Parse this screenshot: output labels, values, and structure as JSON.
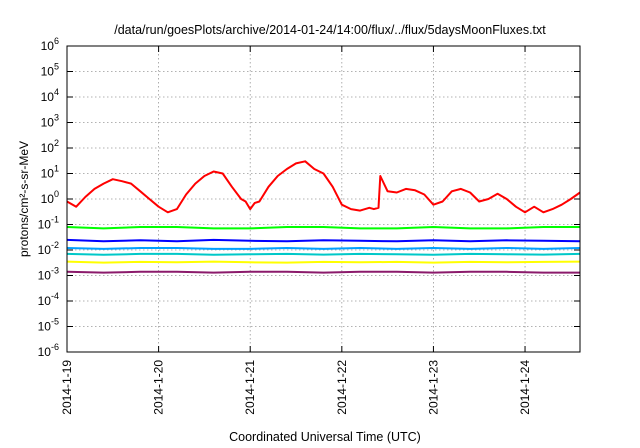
{
  "chart_data": {
    "type": "line",
    "title": "/data/run/goesPlots/archive/2014-01-24/14:00/flux/../flux/5daysMoonFluxes.txt",
    "xlabel": "Coordinated Universal Time (UTC)",
    "ylabel": "protons/cm²-s-sr-MeV",
    "yscale": "log",
    "ylim": [
      1e-06,
      1000000.0
    ],
    "xlim": [
      0,
      5.6
    ],
    "grid": true,
    "yticks": [
      {
        "exp": "-6",
        "value": 1e-06
      },
      {
        "exp": "-5",
        "value": 1e-05
      },
      {
        "exp": "-4",
        "value": 0.0001
      },
      {
        "exp": "-3",
        "value": 0.001
      },
      {
        "exp": "-2",
        "value": 0.01
      },
      {
        "exp": "-1",
        "value": 0.1
      },
      {
        "exp": "0",
        "value": 1
      },
      {
        "exp": "1",
        "value": 10
      },
      {
        "exp": "2",
        "value": 100
      },
      {
        "exp": "3",
        "value": 1000
      },
      {
        "exp": "4",
        "value": 10000
      },
      {
        "exp": "5",
        "value": 100000
      },
      {
        "exp": "6",
        "value": 1000000
      }
    ],
    "xticks": [
      {
        "label": "2014-1-19",
        "value": 0
      },
      {
        "label": "2014-1-20",
        "value": 1
      },
      {
        "label": "2014-1-21",
        "value": 2
      },
      {
        "label": "2014-1-22",
        "value": 3
      },
      {
        "label": "2014-1-23",
        "value": 4
      },
      {
        "label": "2014-1-24",
        "value": 5
      }
    ],
    "series": [
      {
        "color": "#ff0000",
        "x": [
          0,
          0.1,
          0.2,
          0.3,
          0.4,
          0.5,
          0.6,
          0.7,
          0.8,
          0.9,
          1.0,
          1.1,
          1.2,
          1.3,
          1.4,
          1.5,
          1.6,
          1.7,
          1.8,
          1.9,
          1.95,
          2.0,
          2.05,
          2.1,
          2.2,
          2.3,
          2.4,
          2.5,
          2.6,
          2.7,
          2.8,
          2.9,
          3.0,
          3.1,
          3.2,
          3.3,
          3.35,
          3.4,
          3.42,
          3.5,
          3.6,
          3.7,
          3.8,
          3.9,
          4.0,
          4.1,
          4.2,
          4.3,
          4.4,
          4.5,
          4.6,
          4.7,
          4.8,
          4.9,
          5.0,
          5.1,
          5.2,
          5.3,
          5.4,
          5.5,
          5.6
        ],
        "y": [
          0.8,
          0.5,
          1.2,
          2.5,
          4,
          6,
          5,
          4,
          2,
          1,
          0.5,
          0.3,
          0.4,
          1.5,
          4,
          8,
          12,
          10,
          3,
          1,
          0.8,
          0.4,
          0.7,
          0.8,
          3,
          8,
          15,
          25,
          30,
          15,
          10,
          3,
          0.6,
          0.4,
          0.35,
          0.45,
          0.4,
          0.45,
          8,
          2,
          1.8,
          2.5,
          2.2,
          1.5,
          0.6,
          0.8,
          2,
          2.5,
          1.8,
          0.8,
          1,
          1.6,
          1,
          0.5,
          0.3,
          0.5,
          0.3,
          0.4,
          0.6,
          1,
          1.8
        ]
      },
      {
        "color": "#00ff00",
        "x": [
          0,
          0.4,
          0.8,
          1.2,
          1.6,
          2.0,
          2.4,
          2.8,
          3.2,
          3.6,
          4.0,
          4.4,
          4.8,
          5.2,
          5.6
        ],
        "y": [
          0.08,
          0.07,
          0.08,
          0.08,
          0.07,
          0.07,
          0.08,
          0.08,
          0.07,
          0.07,
          0.08,
          0.07,
          0.07,
          0.08,
          0.08
        ]
      },
      {
        "color": "#0000ff",
        "x": [
          0,
          0.4,
          0.8,
          1.2,
          1.6,
          2.0,
          2.4,
          2.8,
          3.2,
          3.6,
          4.0,
          4.4,
          4.8,
          5.2,
          5.6
        ],
        "y": [
          0.025,
          0.022,
          0.024,
          0.022,
          0.025,
          0.023,
          0.022,
          0.024,
          0.023,
          0.022,
          0.024,
          0.022,
          0.024,
          0.023,
          0.022
        ]
      },
      {
        "color": "#00a0ff",
        "x": [
          0,
          0.4,
          0.8,
          1.2,
          1.6,
          2.0,
          2.4,
          2.8,
          3.2,
          3.6,
          4.0,
          4.4,
          4.8,
          5.2,
          5.6
        ],
        "y": [
          0.012,
          0.011,
          0.012,
          0.012,
          0.011,
          0.011,
          0.012,
          0.011,
          0.012,
          0.011,
          0.012,
          0.011,
          0.012,
          0.011,
          0.012
        ]
      },
      {
        "color": "#00c8c8",
        "x": [
          0,
          0.4,
          0.8,
          1.2,
          1.6,
          2.0,
          2.4,
          2.8,
          3.2,
          3.6,
          4.0,
          4.4,
          4.8,
          5.2,
          5.6
        ],
        "y": [
          0.007,
          0.0065,
          0.007,
          0.007,
          0.0065,
          0.0068,
          0.007,
          0.0066,
          0.007,
          0.0068,
          0.0065,
          0.007,
          0.0068,
          0.0066,
          0.007
        ]
      },
      {
        "color": "#ffff00",
        "x": [
          0,
          0.4,
          0.8,
          1.2,
          1.6,
          2.0,
          2.4,
          2.8,
          3.2,
          3.6,
          4.0,
          4.4,
          4.8,
          5.2,
          5.6
        ],
        "y": [
          0.0035,
          0.0032,
          0.0034,
          0.0033,
          0.0035,
          0.0033,
          0.0032,
          0.0034,
          0.0033,
          0.0034,
          0.0032,
          0.0034,
          0.0033,
          0.0034,
          0.0035
        ]
      },
      {
        "color": "#8b1a6b",
        "x": [
          0,
          0.4,
          0.8,
          1.2,
          1.6,
          2.0,
          2.4,
          2.8,
          3.2,
          3.6,
          4.0,
          4.4,
          4.8,
          5.2,
          5.6
        ],
        "y": [
          0.0014,
          0.0013,
          0.0014,
          0.0014,
          0.0013,
          0.0014,
          0.0014,
          0.0013,
          0.0014,
          0.0014,
          0.0013,
          0.0014,
          0.0014,
          0.0013,
          0.0013
        ]
      }
    ]
  }
}
